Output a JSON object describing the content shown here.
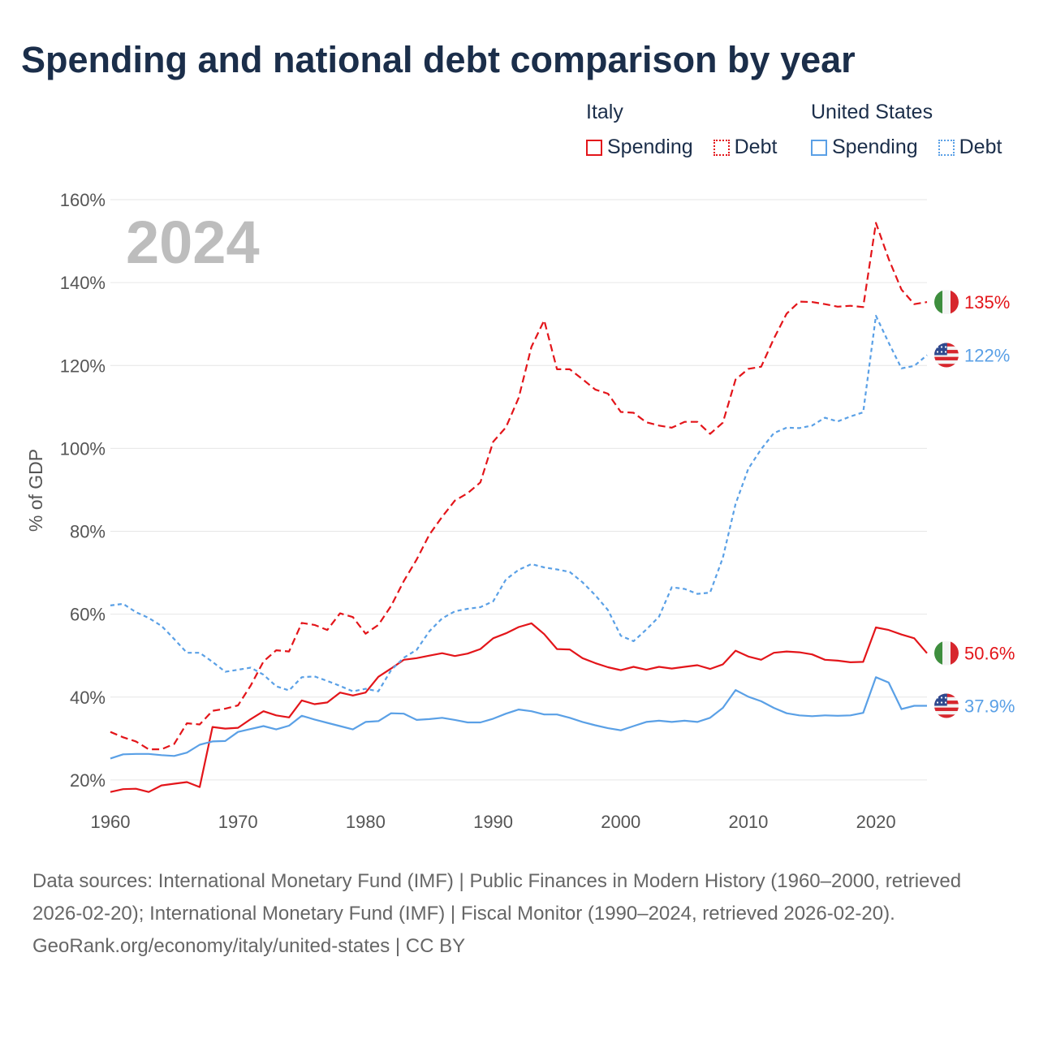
{
  "title": "Spending and national debt comparison by year",
  "legend": {
    "groups": [
      {
        "name": "Italy",
        "color": "#e3151a",
        "items": [
          "Spending",
          "Debt"
        ]
      },
      {
        "name": "United States",
        "color": "#5aa0e6",
        "items": [
          "Spending",
          "Debt"
        ]
      }
    ]
  },
  "year_label": "2024",
  "footer": {
    "sources": "Data sources: International Monetary Fund (IMF) | Public Finances in Modern History (1960–2000, retrieved 2026-02-20); International Monetary Fund (IMF) | Fiscal Monitor (1990–2024, retrieved 2026-02-20).",
    "credit": "GeoRank.org/economy/italy/united-states | CC BY"
  },
  "chart_data": {
    "type": "line",
    "title": "Spending and national debt comparison by year",
    "xlabel": "",
    "ylabel": "% of GDP",
    "xlim": [
      1960,
      2024
    ],
    "ylim": [
      10,
      160
    ],
    "xticks": [
      {
        "value": 1960,
        "label": "1960"
      },
      {
        "value": 1970,
        "label": "1970"
      },
      {
        "value": 1980,
        "label": "1980"
      },
      {
        "value": 1990,
        "label": "1990"
      },
      {
        "value": 2000,
        "label": "2000"
      },
      {
        "value": 2010,
        "label": "2010"
      },
      {
        "value": 2020,
        "label": "2020"
      }
    ],
    "yticks": [
      {
        "value": 20,
        "label": "20%"
      },
      {
        "value": 40,
        "label": "40%"
      },
      {
        "value": 60,
        "label": "60%"
      },
      {
        "value": 80,
        "label": "80%"
      },
      {
        "value": 100,
        "label": "100%"
      },
      {
        "value": 120,
        "label": "120%"
      },
      {
        "value": 140,
        "label": "140%"
      },
      {
        "value": 160,
        "label": "160%"
      }
    ],
    "x": [
      1960,
      1961,
      1962,
      1963,
      1964,
      1965,
      1966,
      1967,
      1968,
      1969,
      1970,
      1971,
      1972,
      1973,
      1974,
      1975,
      1976,
      1977,
      1978,
      1979,
      1980,
      1981,
      1982,
      1983,
      1984,
      1985,
      1986,
      1987,
      1988,
      1989,
      1990,
      1991,
      1992,
      1993,
      1994,
      1995,
      1996,
      1997,
      1998,
      1999,
      2000,
      2001,
      2002,
      2003,
      2004,
      2005,
      2006,
      2007,
      2008,
      2009,
      2010,
      2011,
      2012,
      2013,
      2014,
      2015,
      2016,
      2017,
      2018,
      2019,
      2020,
      2021,
      2022,
      2023,
      2024
    ],
    "series": [
      {
        "name": "Italy Spending",
        "country": "Italy",
        "metric": "Spending",
        "color": "#e3151a",
        "dash": "solid",
        "end_label": "50.6%",
        "flag": "italy-flag",
        "values": [
          17.1,
          17.8,
          17.9,
          17.1,
          18.7,
          19.1,
          19.5,
          18.3,
          32.8,
          32.4,
          32.6,
          34.7,
          36.6,
          35.6,
          35.1,
          39.2,
          38.3,
          38.7,
          41.1,
          40.4,
          41.1,
          44.9,
          46.9,
          49.0,
          49.4,
          50.0,
          50.6,
          49.9,
          50.5,
          51.6,
          54.2,
          55.4,
          56.9,
          57.8,
          55.2,
          51.6,
          51.5,
          49.4,
          48.2,
          47.2,
          46.5,
          47.3,
          46.6,
          47.3,
          46.9,
          47.3,
          47.7,
          46.8,
          47.9,
          51.2,
          49.8,
          49.0,
          50.7,
          51.0,
          50.8,
          50.3,
          49.0,
          48.8,
          48.4,
          48.5,
          56.8,
          56.2,
          55.1,
          54.2,
          50.6
        ]
      },
      {
        "name": "Italy Debt",
        "country": "Italy",
        "metric": "Debt",
        "color": "#e3151a",
        "dash": "dashed",
        "end_label": "135%",
        "flag": "italy-flag",
        "values": [
          31.6,
          30.3,
          29.3,
          27.4,
          27.4,
          28.7,
          33.7,
          33.4,
          36.7,
          37.2,
          38.0,
          42.8,
          48.6,
          51.3,
          51.0,
          57.9,
          57.4,
          56.2,
          60.2,
          59.3,
          55.3,
          57.4,
          62.0,
          68.0,
          73.2,
          79.2,
          83.5,
          87.4,
          89.2,
          91.8,
          101.6,
          105.1,
          112.2,
          124.5,
          130.9,
          119.1,
          119.1,
          116.7,
          114.2,
          113.2,
          108.8,
          108.6,
          106.3,
          105.5,
          105.0,
          106.4,
          106.4,
          103.5,
          106.2,
          116.6,
          119.2,
          119.7,
          126.5,
          132.5,
          135.4,
          135.3,
          134.8,
          134.2,
          134.4,
          134.1,
          154.4,
          145.7,
          138.3,
          134.8,
          135.3
        ]
      },
      {
        "name": "United States Spending",
        "country": "United States",
        "metric": "Spending",
        "color": "#5aa0e6",
        "dash": "solid",
        "end_label": "37.9%",
        "flag": "us-flag",
        "values": [
          25.2,
          26.2,
          26.3,
          26.3,
          26.0,
          25.8,
          26.6,
          28.5,
          29.3,
          29.4,
          31.6,
          32.3,
          33.0,
          32.2,
          33.1,
          35.5,
          34.6,
          33.8,
          33.0,
          32.2,
          34.0,
          34.2,
          36.1,
          36.0,
          34.5,
          34.7,
          35.0,
          34.5,
          33.9,
          33.9,
          34.8,
          36.0,
          37.0,
          36.6,
          35.8,
          35.8,
          35.0,
          34.0,
          33.2,
          32.5,
          32.0,
          33.0,
          34.0,
          34.3,
          34.0,
          34.3,
          34.0,
          35.0,
          37.4,
          41.7,
          40.1,
          39.0,
          37.4,
          36.1,
          35.6,
          35.4,
          35.6,
          35.5,
          35.6,
          36.2,
          44.8,
          43.5,
          37.1,
          37.9,
          37.9
        ]
      },
      {
        "name": "United States Debt",
        "country": "United States",
        "metric": "Debt",
        "color": "#5aa0e6",
        "dash": "dotted",
        "end_label": "122%",
        "flag": "us-flag",
        "values": [
          62.1,
          62.5,
          60.5,
          59.1,
          57.2,
          54.0,
          50.7,
          50.7,
          48.5,
          46.1,
          46.6,
          47.1,
          45.4,
          42.6,
          41.6,
          44.8,
          45.0,
          43.9,
          42.7,
          41.4,
          42.0,
          41.4,
          46.5,
          49.5,
          51.4,
          55.9,
          59.0,
          60.7,
          61.3,
          61.7,
          63.1,
          68.4,
          70.7,
          72.1,
          71.3,
          70.8,
          70.2,
          67.7,
          64.6,
          61.0,
          54.8,
          53.5,
          56.3,
          59.4,
          66.5,
          66.1,
          64.9,
          65.2,
          73.6,
          86.6,
          95.1,
          99.8,
          103.7,
          105.0,
          104.9,
          105.5,
          107.4,
          106.5,
          107.7,
          108.7,
          132.0,
          125.5,
          119.3,
          119.9,
          122.5
        ]
      }
    ]
  }
}
